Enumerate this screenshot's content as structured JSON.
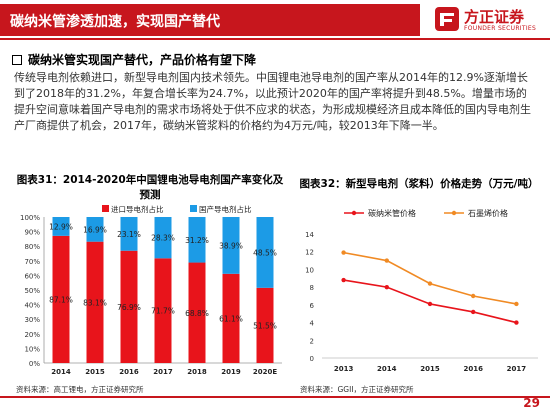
{
  "header": {
    "title": "碳纳米管渗透加速，实现国产替代",
    "logo_cn": "方正证券",
    "logo_en": "FOUNDER SECURITIES"
  },
  "bullet": "碳纳米管实现国产替代，产品价格有望下降",
  "paragraph": "传统导电剂依赖进口，新型导电剂国内技术领先。中国锂电池导电剂的国产率从2014年的12.9%逐渐增长到了2018年的31.2%，年复合增长率为24.7%，以此预计2020年的国产率将提升到48.5%。增量市场的提升空间意味着国产导电剂的需求市场将处于供不应求的状态，为形成规模经济且成本降低的国内导电剂生产厂商提供了机会，2017年，碳纳米管浆料的价格约为4万元/吨，较2013年下降一半。",
  "chart_data": [
    {
      "type": "bar",
      "title": "图表31：2014-2020年中国锂电池导电剂国产率变化及预测",
      "stacked": true,
      "categories": [
        "2014",
        "2015",
        "2016",
        "2017",
        "2018",
        "2019",
        "2020E"
      ],
      "series": [
        {
          "name": "进口导电剂占比",
          "color": "#e8141b",
          "values": [
            87.1,
            83.1,
            76.9,
            71.7,
            68.8,
            61.1,
            51.5
          ]
        },
        {
          "name": "国产导电剂占比",
          "color": "#1c9be6",
          "values": [
            12.9,
            16.9,
            23.1,
            28.3,
            31.2,
            38.9,
            48.5
          ]
        }
      ],
      "data_labels_display": {
        "进口导电剂占比": [
          "87.1%",
          "83.1%",
          "76.9%",
          "71.7%",
          "68.8%",
          "61.1%",
          "51.5%"
        ],
        "国产导电剂占比": [
          "12.9%",
          "16.9%",
          "23.1%",
          "28.3%",
          "31.2%",
          "38.9%",
          "48.5%"
        ]
      },
      "ylim": [
        0,
        100
      ],
      "yticks": [
        "0%",
        "10%",
        "20%",
        "30%",
        "40%",
        "50%",
        "60%",
        "70%",
        "80%",
        "90%",
        "100%"
      ],
      "legend": "top",
      "grid": false,
      "source": "资料来源：高工锂电，方正证券研究所"
    },
    {
      "type": "line",
      "title": "图表32：新型导电剂（浆料）价格走势（万元/吨）",
      "categories": [
        "2013",
        "2014",
        "2015",
        "2016",
        "2017"
      ],
      "series": [
        {
          "name": "碳纳米管价格",
          "color": "#e8141b",
          "values": [
            8.8,
            8.0,
            6.1,
            5.2,
            4.0
          ]
        },
        {
          "name": "石墨烯价格",
          "color": "#f08a24",
          "values": [
            11.9,
            11.0,
            8.4,
            7.0,
            6.1
          ]
        }
      ],
      "ylim": [
        0,
        14
      ],
      "yticks": [
        "0",
        "2",
        "4",
        "6",
        "8",
        "10",
        "12",
        "14"
      ],
      "legend": "top",
      "grid": false,
      "source": "资料来源：GGII，方正证券研究所"
    }
  ],
  "footer": {
    "page": "29"
  }
}
